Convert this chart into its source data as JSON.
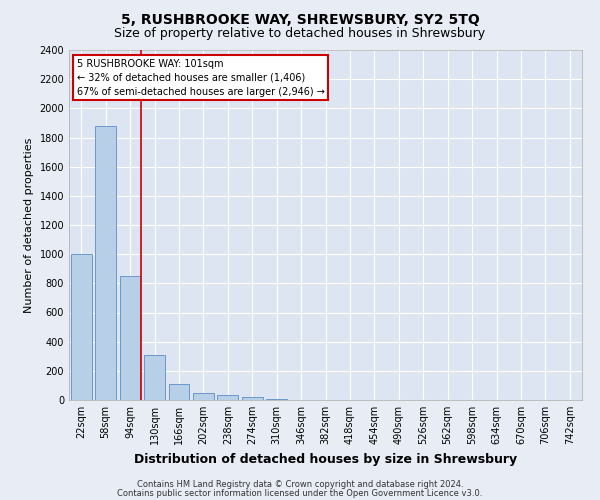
{
  "title1": "5, RUSHBROOKE WAY, SHREWSBURY, SY2 5TQ",
  "title2": "Size of property relative to detached houses in Shrewsbury",
  "xlabel": "Distribution of detached houses by size in Shrewsbury",
  "ylabel": "Number of detached properties",
  "categories": [
    "22sqm",
    "58sqm",
    "94sqm",
    "130sqm",
    "166sqm",
    "202sqm",
    "238sqm",
    "274sqm",
    "310sqm",
    "346sqm",
    "382sqm",
    "418sqm",
    "454sqm",
    "490sqm",
    "526sqm",
    "562sqm",
    "598sqm",
    "634sqm",
    "670sqm",
    "706sqm",
    "742sqm"
  ],
  "values": [
    1000,
    1880,
    850,
    310,
    110,
    45,
    35,
    20,
    10,
    3,
    1,
    0,
    0,
    0,
    0,
    0,
    0,
    0,
    0,
    0,
    0
  ],
  "bar_color": "#b8cfe8",
  "bar_edge_color": "#5b8dc8",
  "red_line_x": 2.43,
  "ylim": [
    0,
    2400
  ],
  "yticks": [
    0,
    200,
    400,
    600,
    800,
    1000,
    1200,
    1400,
    1600,
    1800,
    2000,
    2200,
    2400
  ],
  "annotation_title": "5 RUSHBROOKE WAY: 101sqm",
  "annotation_line1": "← 32% of detached houses are smaller (1,406)",
  "annotation_line2": "67% of semi-detached houses are larger (2,946) →",
  "annotation_box_facecolor": "#ffffff",
  "annotation_box_edgecolor": "#cc0000",
  "footer1": "Contains HM Land Registry data © Crown copyright and database right 2024.",
  "footer2": "Contains public sector information licensed under the Open Government Licence v3.0.",
  "bg_color": "#e8edf5",
  "plot_bg_color": "#dde5f2",
  "grid_color": "#ffffff",
  "title1_fontsize": 10,
  "title2_fontsize": 9,
  "ylabel_fontsize": 8,
  "xlabel_fontsize": 9,
  "tick_fontsize": 7,
  "ann_fontsize": 7,
  "footer_fontsize": 6
}
